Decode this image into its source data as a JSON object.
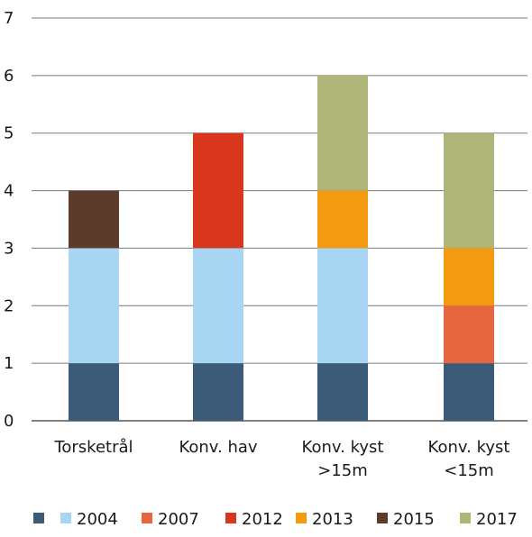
{
  "chart_data": {
    "type": "bar",
    "stacked": true,
    "categories": [
      [
        "Torsketrål"
      ],
      [
        "Konv. hav"
      ],
      [
        "Konv. kyst",
        ">15m"
      ],
      [
        "Konv. kyst",
        "<15m"
      ]
    ],
    "ylim": [
      0,
      7
    ],
    "yticks": [
      0,
      1,
      2,
      3,
      4,
      5,
      6,
      7
    ],
    "grid": true,
    "legend_position": "bottom",
    "series": [
      {
        "name": "",
        "color": "#3b5b78",
        "values": [
          1,
          1,
          1,
          1
        ]
      },
      {
        "name": "2004",
        "color": "#a8d6f2",
        "values": [
          2,
          2,
          2,
          0
        ]
      },
      {
        "name": "2007",
        "color": "#e6663f",
        "values": [
          0,
          0,
          0,
          1
        ]
      },
      {
        "name": "2012",
        "color": "#d9361e",
        "values": [
          0,
          2,
          0,
          0
        ]
      },
      {
        "name": "2013",
        "color": "#f39a11",
        "values": [
          0,
          0,
          1,
          1
        ]
      },
      {
        "name": "2015",
        "color": "#5c3a2c",
        "values": [
          1,
          0,
          0,
          0
        ]
      },
      {
        "name": "2017",
        "color": "#b0b679",
        "values": [
          0,
          0,
          2,
          2
        ]
      }
    ]
  }
}
